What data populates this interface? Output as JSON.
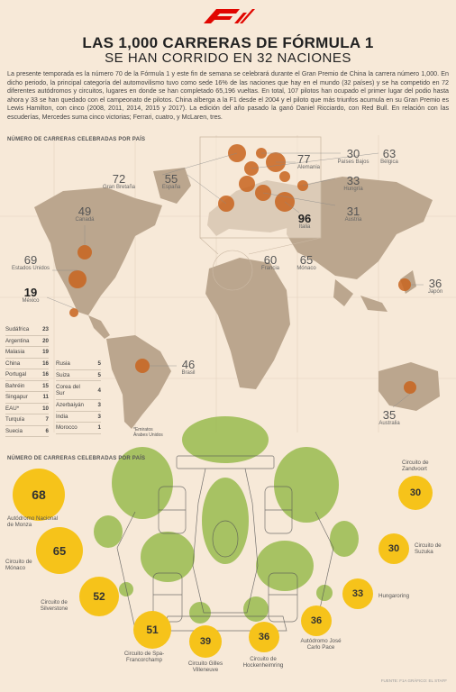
{
  "header": {
    "logo_name": "f1-logo",
    "title_line1": "LAS 1,000 CARRERAS DE FÓRMULA 1",
    "title_line2": "SE HAN CORRIDO EN 32 NACIONES",
    "intro": "La presente temporada es la número 70 de la Fórmula 1 y este fin de semana se celebrará durante el Gran Premio de China la carrera número 1,000. En dicho periodo, la principal categoría del automovilismo tuvo como sede 16% de las naciones que hay en el mundo (32 países) y se ha competido en 72 diferentes autódromos y circuitos, lugares en donde se han completado 65,196 vueltas. En total, 107 pilotos han ocupado el primer lugar del podio hasta ahora y 33 se han quedado con el campeonato de pilotos. China alberga a la F1 desde el 2004 y el piloto que más triunfos acumula en su Gran Premio es Lewis Hamilton, con cinco (2008, 2011, 2014, 2015 y 2017). La edición del año pasado la ganó Daniel Ricciardo, con Red Bull. En relación con las escuderías, Mercedes suma cinco victorias; Ferrari, cuatro, y McLaren, tres."
  },
  "map_section": {
    "title": "NÚMERO DE CARRERAS CELEBRADAS POR PAÍS",
    "countries": [
      {
        "value": "72",
        "name": "Gran Bretaña"
      },
      {
        "value": "55",
        "name": "España"
      },
      {
        "value": "77",
        "name": "Alemania"
      },
      {
        "value": "30",
        "name": "Países Bajos"
      },
      {
        "value": "63",
        "name": "Bélgica"
      },
      {
        "value": "33",
        "name": "Hungría"
      },
      {
        "value": "31",
        "name": "Austria"
      },
      {
        "value": "96",
        "name": "Italia"
      },
      {
        "value": "60",
        "name": "Francia"
      },
      {
        "value": "65",
        "name": "Mónaco"
      },
      {
        "value": "49",
        "name": "Canadá"
      },
      {
        "value": "69",
        "name": "Estados Unidos"
      },
      {
        "value": "19",
        "name": "México"
      },
      {
        "value": "36",
        "name": "Japón"
      },
      {
        "value": "46",
        "name": "Brasil"
      },
      {
        "value": "35",
        "name": "Australia"
      }
    ],
    "table_left": [
      {
        "name": "Sudáfrica",
        "value": "23"
      },
      {
        "name": "Argentina",
        "value": "20"
      },
      {
        "name": "Malasia",
        "value": "19"
      },
      {
        "name": "China",
        "value": "16"
      },
      {
        "name": "Portugal",
        "value": "16"
      },
      {
        "name": "Bahréin",
        "value": "15"
      },
      {
        "name": "Singapur",
        "value": "11"
      },
      {
        "name": "EAU*",
        "value": "10"
      },
      {
        "name": "Turquía",
        "value": "7"
      },
      {
        "name": "Suecia",
        "value": "6"
      }
    ],
    "table_right": [
      {
        "name": "Rusia",
        "value": "5"
      },
      {
        "name": "Suiza",
        "value": "5"
      },
      {
        "name": "Corea del Sur",
        "value": "4"
      },
      {
        "name": "Azerbaiyán",
        "value": "3"
      },
      {
        "name": "India",
        "value": "3"
      },
      {
        "name": "Morocco",
        "value": "1"
      }
    ],
    "note_line1": "*Emiratos",
    "note_line2": "Árabes Unidos"
  },
  "circuit_section": {
    "title": "NÚMERO DE CARRERAS CELEBRADAS POR PAÍS",
    "circuits": [
      {
        "value": "68",
        "name": "Autódromo Nacional de Monza"
      },
      {
        "value": "65",
        "name": "Circuito de Mónaco"
      },
      {
        "value": "52",
        "name": "Circuito de Silverstone"
      },
      {
        "value": "51",
        "name": "Circuito de Spa-Francorchamp"
      },
      {
        "value": "39",
        "name": "Circuito Gilles Villeneuve"
      },
      {
        "value": "36",
        "name": "Circuito de Hockenheimring"
      },
      {
        "value": "36",
        "name": "Autódromo José Carlo Pace"
      },
      {
        "value": "33",
        "name": "Hungaroring"
      },
      {
        "value": "30",
        "name": "Circuito de Suzuka"
      },
      {
        "value": "30",
        "name": "Circuito de Zandvoort"
      }
    ]
  },
  "footer": "FUENTE: F1A GRÁFICO: EL STAFF",
  "colors": {
    "background": "#f7e9d8",
    "bubble": "#c8641e",
    "circle": "#f6c31a",
    "land": "#bba68e",
    "green": "#8cb43c"
  }
}
